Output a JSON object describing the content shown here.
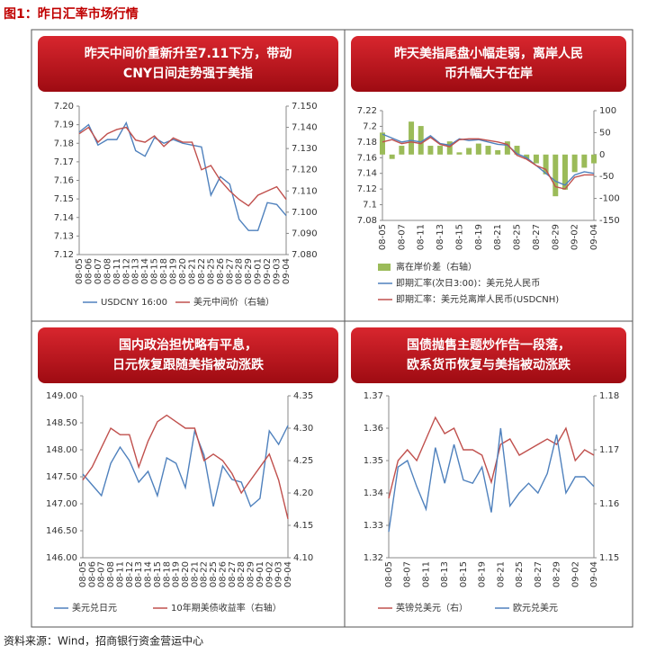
{
  "page_title": "图1：昨日汇率市场行情",
  "source": "资料来源：Wind，招商银行资金营运中心",
  "chart_data": [
    {
      "type": "line",
      "title": [
        "昨天中间价重新升至7.11下方，带动",
        "CNY日间走势强于美指"
      ],
      "categories": [
        "08-05",
        "08-06",
        "08-07",
        "08-08",
        "08-11",
        "08-12",
        "08-13",
        "08-14",
        "08-15",
        "08-18",
        "08-19",
        "08-20",
        "08-21",
        "08-22",
        "08-25",
        "08-26",
        "08-27",
        "08-28",
        "08-29",
        "09-01",
        "09-02",
        "09-03",
        "09-04"
      ],
      "ylim": [
        7.12,
        7.2
      ],
      "yticks": [
        {
          "value": 7.2,
          "label": "7.20"
        },
        7.19,
        7.18,
        7.17,
        7.16,
        7.15,
        7.14,
        7.13,
        {
          "value": 7.12,
          "label": "7.12"
        }
      ],
      "y2lim": [
        7.08,
        7.15
      ],
      "y2ticks": [
        {
          "value": 7.15,
          "label": "7.150"
        },
        {
          "value": 7.14,
          "label": "7.140"
        },
        {
          "value": 7.13,
          "label": "7.130"
        },
        {
          "value": 7.12,
          "label": "7.120"
        },
        {
          "value": 7.11,
          "label": "7.110"
        },
        {
          "value": 7.1,
          "label": "7.100"
        },
        {
          "value": 7.09,
          "label": "7.090"
        },
        {
          "value": 7.08,
          "label": "7.080"
        }
      ],
      "series": [
        {
          "name": "USDCNY 16:00",
          "color": "#4f81bd",
          "values": [
            7.186,
            7.19,
            7.179,
            7.182,
            7.182,
            7.191,
            7.176,
            7.173,
            7.183,
            7.18,
            7.182,
            7.18,
            7.179,
            7.178,
            7.152,
            7.162,
            7.158,
            7.139,
            7.133,
            7.133,
            7.148,
            7.147,
            7.141
          ]
        },
        {
          "name": "美元中间价（右轴）",
          "color": "#c0504d",
          "axis": "y2",
          "values": [
            7.137,
            7.14,
            7.133,
            7.137,
            7.139,
            7.14,
            7.134,
            7.133,
            7.136,
            7.131,
            7.135,
            7.133,
            7.133,
            7.12,
            7.122,
            7.115,
            7.11,
            7.106,
            7.103,
            7.108,
            7.11,
            7.112,
            7.106
          ]
        }
      ]
    },
    {
      "type": "line",
      "title": [
        "昨天美指尾盘小幅走弱，离岸人民",
        "币升幅大于在岸"
      ],
      "categories": [
        "08-05",
        null,
        "08-07",
        null,
        "08-11",
        null,
        "08-13",
        null,
        "08-15",
        null,
        "08-19",
        null,
        "08-21",
        null,
        "08-25",
        null,
        "08-27",
        null,
        "08-29",
        null,
        "09-02",
        null,
        "09-04"
      ],
      "ylim": [
        7.08,
        7.22
      ],
      "yticks": [
        7.22,
        7.2,
        7.18,
        7.16,
        7.14,
        7.12,
        7.1,
        7.08
      ],
      "y2lim": [
        -150,
        100
      ],
      "y2ticks": [
        100,
        50,
        0,
        -50,
        -100,
        -150
      ],
      "series": [
        {
          "name": "离在岸价差（右轴）",
          "color": "#9bbb59",
          "type": "bar",
          "axis": "y2",
          "values": [
            50,
            -10,
            20,
            75,
            65,
            20,
            20,
            30,
            5,
            15,
            25,
            20,
            10,
            30,
            20,
            -10,
            -20,
            -45,
            -95,
            -80,
            -40,
            -30,
            -20
          ]
        },
        {
          "name": "即期汇率(次日3:00)：美元兑人民币",
          "color": "#4f81bd",
          "values": [
            7.19,
            7.185,
            7.18,
            7.182,
            7.18,
            7.188,
            7.178,
            7.176,
            7.184,
            7.182,
            7.183,
            7.18,
            7.177,
            7.176,
            7.165,
            7.16,
            7.15,
            7.14,
            7.13,
            7.125,
            7.138,
            7.142,
            7.14
          ]
        },
        {
          "name": "即期汇率：美元兑离岸人民币(USDCNH)",
          "color": "#c0504d",
          "values": [
            7.18,
            7.183,
            7.178,
            7.18,
            7.178,
            7.186,
            7.177,
            7.174,
            7.183,
            7.184,
            7.184,
            7.182,
            7.18,
            7.177,
            7.163,
            7.158,
            7.15,
            7.145,
            7.123,
            7.12,
            7.135,
            7.138,
            7.138
          ]
        }
      ]
    },
    {
      "type": "line",
      "title": [
        "国内政治担忧略有平息，",
        "日元恢复跟随美指被动涨跌"
      ],
      "categories": [
        "08-05",
        "08-06",
        "08-07",
        "08-08",
        "08-11",
        "08-12",
        "08-13",
        "08-14",
        "08-15",
        "08-18",
        "08-19",
        "08-20",
        "08-21",
        "08-22",
        "08-25",
        "08-26",
        "08-27",
        "08-28",
        "08-29",
        "09-01",
        "09-02",
        "09-03",
        "09-04"
      ],
      "ylim": [
        146,
        149
      ],
      "yticks": [
        {
          "value": 149,
          "label": "149.00"
        },
        {
          "value": 148.5,
          "label": "148.50"
        },
        {
          "value": 148,
          "label": "148.00"
        },
        {
          "value": 147.5,
          "label": "147.50"
        },
        {
          "value": 147,
          "label": "147.00"
        },
        {
          "value": 146.5,
          "label": "146.50"
        },
        {
          "value": 146,
          "label": "146.00"
        }
      ],
      "y2lim": [
        4.1,
        4.35
      ],
      "y2ticks": [
        4.35,
        {
          "value": 4.3,
          "label": "4.30"
        },
        4.25,
        {
          "value": 4.2,
          "label": "4.20"
        },
        4.15,
        {
          "value": 4.1,
          "label": "4.10"
        }
      ],
      "series": [
        {
          "name": "美元兑日元",
          "color": "#4f81bd",
          "values": [
            147.55,
            147.35,
            147.15,
            147.75,
            148.05,
            147.8,
            147.4,
            147.6,
            147.15,
            147.85,
            147.75,
            147.3,
            148.35,
            147.9,
            146.95,
            147.7,
            147.45,
            147.4,
            146.95,
            147.1,
            148.35,
            148.1,
            148.45
          ]
        },
        {
          "name": "10年期美债收益率（右轴）",
          "color": "#c0504d",
          "axis": "y2",
          "values": [
            4.22,
            4.24,
            4.27,
            4.3,
            4.29,
            4.29,
            4.24,
            4.28,
            4.31,
            4.32,
            4.31,
            4.3,
            4.3,
            4.25,
            4.26,
            4.25,
            4.23,
            4.2,
            4.22,
            4.24,
            4.26,
            4.22,
            4.16
          ]
        }
      ]
    },
    {
      "type": "line",
      "title": [
        "国债抛售主题炒作告一段落，",
        "欧系货币恢复与美指被动涨跌"
      ],
      "categories": [
        "08-05",
        null,
        "08-07",
        null,
        "08-11",
        null,
        "08-13",
        null,
        "08-15",
        null,
        "08-19",
        null,
        "08-21",
        null,
        "08-25",
        null,
        "08-27",
        null,
        "08-29",
        null,
        "09-02",
        null,
        "09-04"
      ],
      "ylim": [
        1.32,
        1.37
      ],
      "yticks": [
        1.37,
        1.36,
        1.35,
        1.34,
        1.33,
        1.32
      ],
      "y2lim": [
        1.15,
        1.18
      ],
      "y2ticks": [
        1.18,
        1.17,
        1.16,
        1.15
      ],
      "series": [
        {
          "name": "英镑兑美元（右）",
          "color": "#c0504d",
          "axis": "y2",
          "values": [
            1.161,
            1.168,
            1.17,
            1.168,
            1.172,
            1.176,
            1.173,
            1.174,
            1.17,
            1.17,
            1.169,
            1.164,
            1.171,
            1.172,
            1.169,
            1.17,
            1.171,
            1.172,
            1.171,
            1.174,
            1.168,
            1.17,
            1.169
          ]
        },
        {
          "name": "欧元兑美元",
          "color": "#4f81bd",
          "values": [
            1.328,
            1.348,
            1.35,
            1.342,
            1.335,
            1.354,
            1.343,
            1.355,
            1.344,
            1.343,
            1.348,
            1.334,
            1.36,
            1.336,
            1.34,
            1.343,
            1.34,
            1.346,
            1.358,
            1.34,
            1.345,
            1.345,
            1.342
          ]
        }
      ]
    }
  ]
}
